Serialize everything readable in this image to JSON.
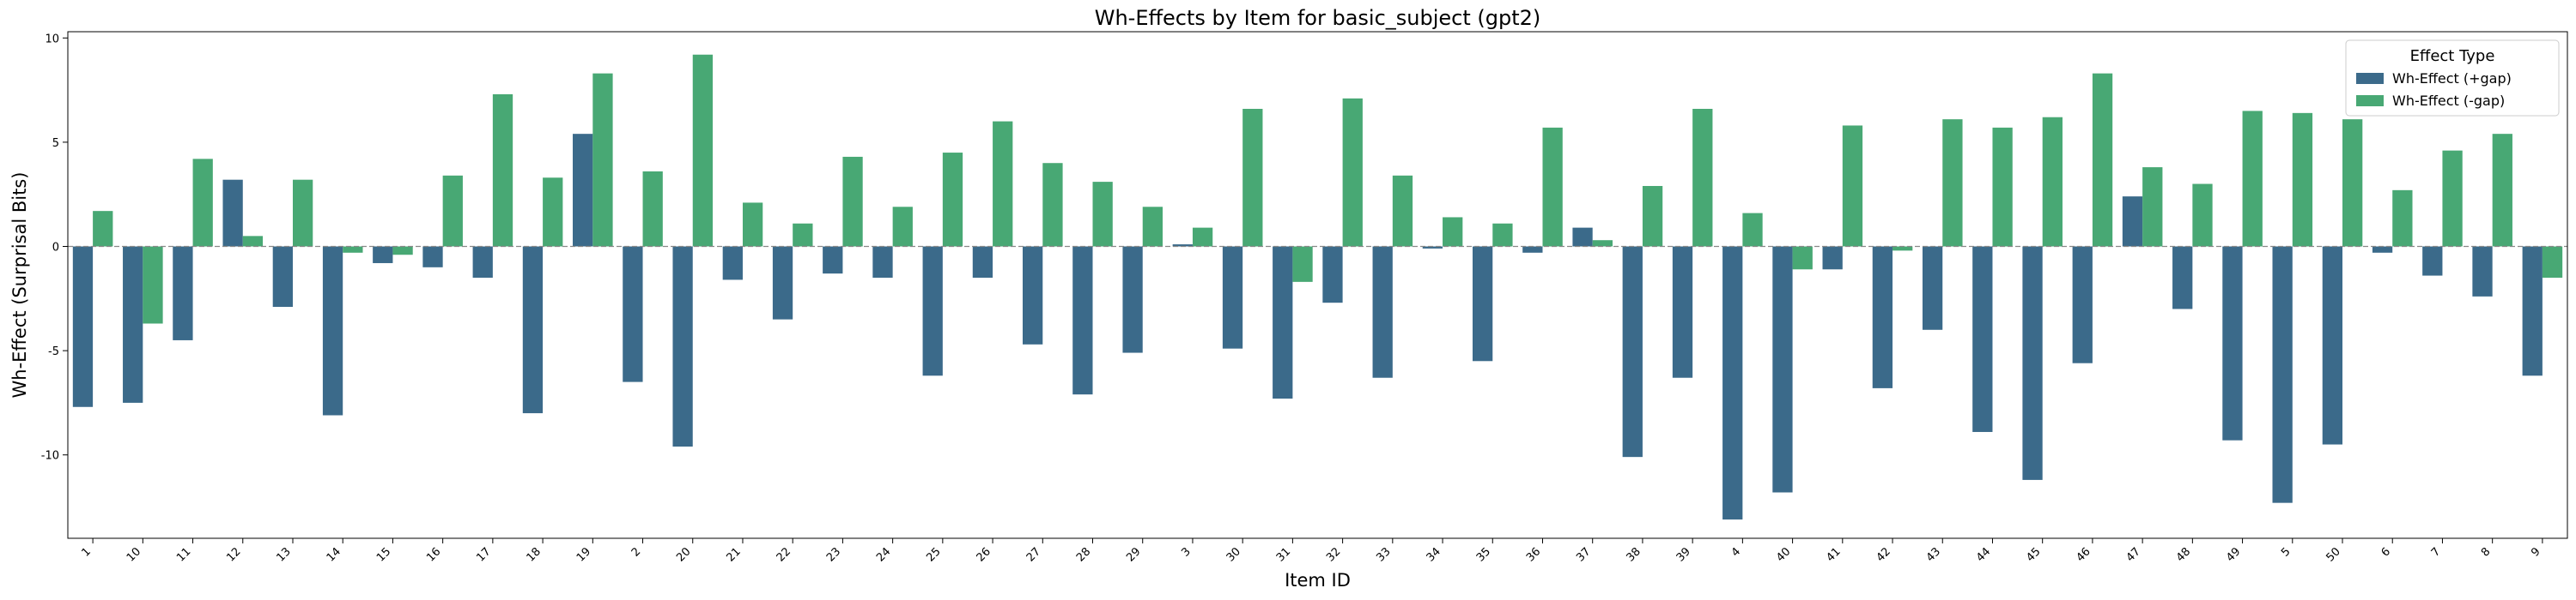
{
  "chart_data": {
    "type": "bar",
    "title": "Wh-Effects by Item for basic_subject (gpt2)",
    "xlabel": "Item ID",
    "ylabel": "Wh-Effect (Surprisal Bits)",
    "ylim": [
      -14.0,
      10.3
    ],
    "yticks": [
      -10,
      -5,
      0,
      5,
      10
    ],
    "grid": false,
    "legend": {
      "title": "Effect Type",
      "placement": "top-right"
    },
    "categories": [
      "1",
      "10",
      "11",
      "12",
      "13",
      "14",
      "15",
      "16",
      "17",
      "18",
      "19",
      "2",
      "20",
      "21",
      "22",
      "23",
      "24",
      "25",
      "26",
      "27",
      "28",
      "29",
      "3",
      "30",
      "31",
      "32",
      "33",
      "34",
      "35",
      "36",
      "37",
      "38",
      "39",
      "4",
      "40",
      "41",
      "42",
      "43",
      "44",
      "45",
      "46",
      "47",
      "48",
      "49",
      "5",
      "50",
      "6",
      "7",
      "8",
      "9"
    ],
    "series": [
      {
        "name": "Wh-Effect (+gap)",
        "color": "#3b6a8a",
        "values": [
          -7.7,
          -7.5,
          -4.5,
          3.2,
          -2.9,
          -8.1,
          -0.8,
          -1.0,
          -1.5,
          -8.0,
          5.4,
          -6.5,
          -9.6,
          -1.6,
          -3.5,
          -1.3,
          -1.5,
          -6.2,
          -1.5,
          -4.7,
          -7.1,
          -5.1,
          0.1,
          -4.9,
          -7.3,
          -2.7,
          -6.3,
          -0.1,
          -5.5,
          -0.3,
          0.9,
          -10.1,
          -6.3,
          -13.1,
          -11.8,
          -1.1,
          -6.8,
          -4.0,
          -8.9,
          -11.2,
          -5.6,
          2.4,
          -3.0,
          -9.3,
          -12.3,
          -9.5,
          -0.3,
          -1.4,
          -2.4,
          -6.2
        ]
      },
      {
        "name": "Wh-Effect (-gap)",
        "color": "#48a874",
        "values": [
          1.7,
          -3.7,
          4.2,
          0.5,
          3.2,
          -0.3,
          -0.4,
          3.4,
          7.3,
          3.3,
          8.3,
          3.6,
          9.2,
          2.1,
          1.1,
          4.3,
          1.9,
          4.5,
          6.0,
          4.0,
          3.1,
          1.9,
          0.9,
          6.6,
          -1.7,
          7.1,
          3.4,
          1.4,
          1.1,
          5.7,
          0.3,
          2.9,
          6.6,
          1.6,
          -1.1,
          5.8,
          -0.2,
          6.1,
          5.7,
          6.2,
          8.3,
          3.8,
          3.0,
          6.5,
          6.4,
          6.1,
          2.7,
          4.6,
          5.4,
          -1.5
        ]
      }
    ]
  }
}
